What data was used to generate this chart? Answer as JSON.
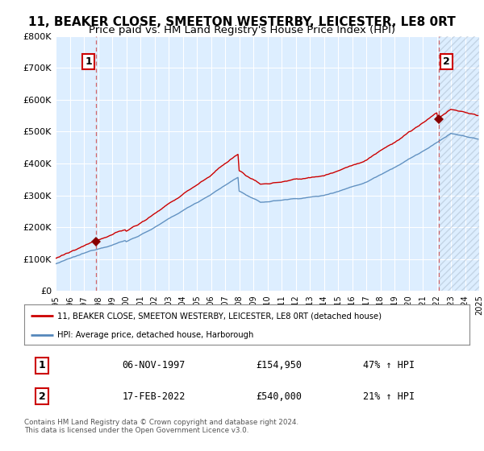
{
  "title": "11, BEAKER CLOSE, SMEETON WESTERBY, LEICESTER, LE8 0RT",
  "subtitle": "Price paid vs. HM Land Registry's House Price Index (HPI)",
  "ylim": [
    0,
    800000
  ],
  "yticks": [
    0,
    100000,
    200000,
    300000,
    400000,
    500000,
    600000,
    700000,
    800000
  ],
  "ytick_labels": [
    "£0",
    "£100K",
    "£200K",
    "£300K",
    "£400K",
    "£500K",
    "£600K",
    "£700K",
    "£800K"
  ],
  "xlim_start": 1995.0,
  "xlim_end": 2025.0,
  "red_line_color": "#cc0000",
  "blue_line_color": "#5588bb",
  "marker_color": "#880000",
  "sale1_x": 1997.87,
  "sale1_y": 154950,
  "sale2_x": 2022.12,
  "sale2_y": 540000,
  "legend_line1": "11, BEAKER CLOSE, SMEETON WESTERBY, LEICESTER, LE8 0RT (detached house)",
  "legend_line2": "HPI: Average price, detached house, Harborough",
  "table_row1_num": "1",
  "table_row1_date": "06-NOV-1997",
  "table_row1_price": "£154,950",
  "table_row1_hpi": "47% ↑ HPI",
  "table_row2_num": "2",
  "table_row2_date": "17-FEB-2022",
  "table_row2_price": "£540,000",
  "table_row2_hpi": "21% ↑ HPI",
  "footnote": "Contains HM Land Registry data © Crown copyright and database right 2024.\nThis data is licensed under the Open Government Licence v3.0.",
  "bg_color": "#ffffff",
  "plot_bg_color": "#ddeeff",
  "grid_color": "#ffffff",
  "title_fontsize": 11,
  "subtitle_fontsize": 9.5
}
